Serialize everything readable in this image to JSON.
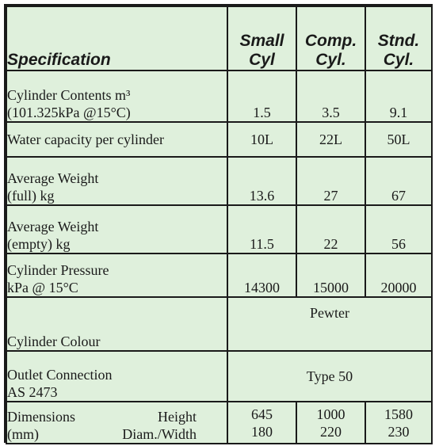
{
  "header": {
    "spec": "Specification",
    "small": [
      "Small",
      "Cyl"
    ],
    "comp": [
      "Comp.",
      "Cyl."
    ],
    "stnd": [
      "Stnd.",
      "Cyl."
    ]
  },
  "rows": {
    "contents": {
      "label": [
        "Cylinder Contents m³",
        "(101.325kPa @15°C)"
      ],
      "small": "1.5",
      "comp": "3.5",
      "stnd": "9.1"
    },
    "water": {
      "label": "Water capacity per cylinder",
      "small": "10L",
      "comp": "22L",
      "stnd": "50L"
    },
    "weight_full": {
      "label": [
        "Average Weight",
        "(full) kg"
      ],
      "small": "13.6",
      "comp": "27",
      "stnd": "67"
    },
    "weight_empty": {
      "label": [
        "Average Weight",
        "(empty) kg"
      ],
      "small": "11.5",
      "comp": "22",
      "stnd": "56"
    },
    "pressure": {
      "label": [
        "Cylinder Pressure",
        "kPa @ 15°C"
      ],
      "small": "14300",
      "comp": "15000",
      "stnd": "20000"
    },
    "colour": {
      "label": "Cylinder Colour",
      "value": "Pewter"
    },
    "outlet": {
      "label": [
        "Outlet Connection",
        "AS 2473"
      ],
      "value": "Type 50"
    },
    "dimensions": {
      "label_left": [
        "Dimensions",
        "(mm)"
      ],
      "label_right": [
        "Height",
        "Diam./Width"
      ],
      "small": [
        "645",
        "180"
      ],
      "comp": [
        "1000",
        "220"
      ],
      "stnd": [
        "1580",
        "230"
      ]
    }
  }
}
